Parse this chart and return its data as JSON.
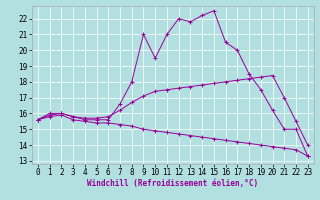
{
  "xlabel": "Windchill (Refroidissement éolien,°C)",
  "xlim": [
    -0.5,
    23.5
  ],
  "ylim": [
    12.8,
    22.8
  ],
  "yticks": [
    13,
    14,
    15,
    16,
    17,
    18,
    19,
    20,
    21,
    22
  ],
  "xticks": [
    0,
    1,
    2,
    3,
    4,
    5,
    6,
    7,
    8,
    9,
    10,
    11,
    12,
    13,
    14,
    15,
    16,
    17,
    18,
    19,
    20,
    21,
    22,
    23
  ],
  "bg_color": "#b2e0e0",
  "line_color": "#990099",
  "grid_color": "#ffffff",
  "line1_x": [
    0,
    1,
    2,
    3,
    4,
    5,
    6,
    7,
    8,
    9,
    10,
    11,
    12,
    13,
    14,
    15,
    16,
    17,
    18,
    19,
    20,
    21,
    22,
    23
  ],
  "line1_y": [
    15.6,
    16.0,
    16.0,
    15.8,
    15.6,
    15.6,
    15.6,
    16.6,
    18.0,
    21.0,
    19.5,
    21.0,
    22.0,
    21.8,
    22.2,
    22.5,
    20.5,
    20.0,
    18.5,
    17.5,
    16.2,
    15.0,
    15.0,
    13.3
  ],
  "line2_x": [
    0,
    1,
    2,
    3,
    4,
    5,
    6,
    7,
    8,
    9,
    10,
    11,
    12,
    13,
    14,
    15,
    16,
    17,
    18,
    19,
    20,
    21,
    22,
    23
  ],
  "line2_y": [
    15.6,
    15.9,
    16.0,
    15.8,
    15.7,
    15.7,
    15.8,
    16.2,
    16.7,
    17.1,
    17.4,
    17.5,
    17.6,
    17.7,
    17.8,
    17.9,
    18.0,
    18.1,
    18.2,
    18.3,
    18.4,
    17.0,
    15.5,
    14.0
  ],
  "line3_x": [
    0,
    1,
    2,
    3,
    4,
    5,
    6,
    7,
    8,
    9,
    10,
    11,
    12,
    13,
    14,
    15,
    16,
    17,
    18,
    19,
    20,
    21,
    22,
    23
  ],
  "line3_y": [
    15.6,
    15.8,
    15.9,
    15.6,
    15.5,
    15.4,
    15.4,
    15.3,
    15.2,
    15.0,
    14.9,
    14.8,
    14.7,
    14.6,
    14.5,
    14.4,
    14.3,
    14.2,
    14.1,
    14.0,
    13.9,
    13.8,
    13.7,
    13.3
  ],
  "tick_fontsize": 5.5,
  "xlabel_fontsize": 5.5
}
